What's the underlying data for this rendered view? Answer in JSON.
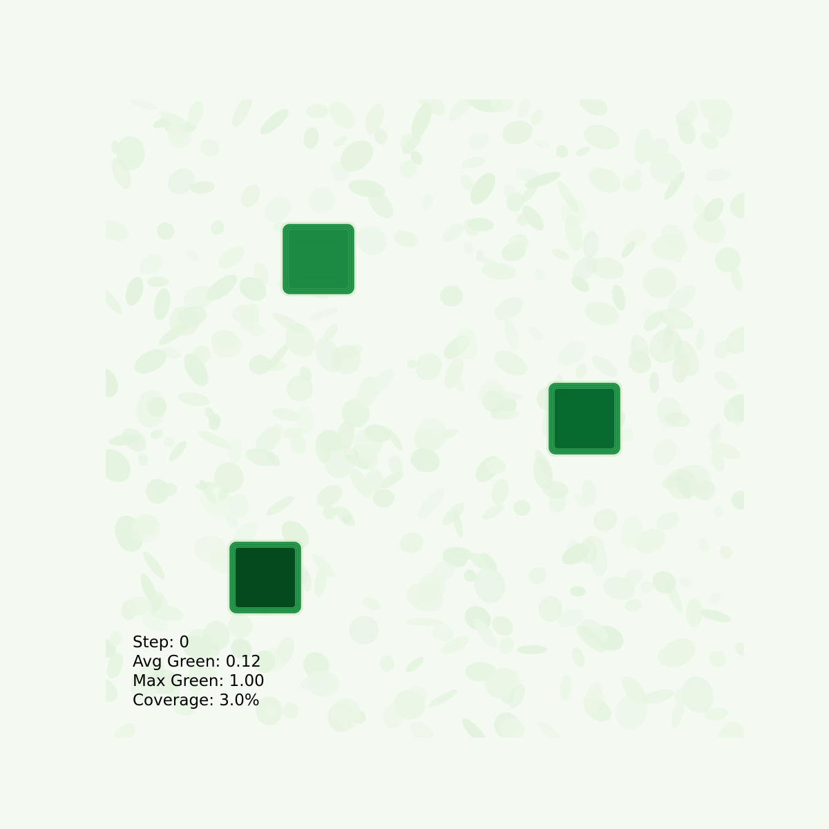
{
  "simulation": {
    "stats": {
      "step_label": "Step: 0",
      "avg_green_label": "Avg Green: 0.12",
      "max_green_label": "Max Green: 1.00",
      "coverage_label": "Coverage: 3.0%"
    },
    "values": {
      "step": 0,
      "avg_green": 0.12,
      "max_green": 1.0,
      "coverage_percent": 3.0
    },
    "colormap": "Greens",
    "colors": {
      "background": "#f4f9f2",
      "noise_light": "#e3f3de",
      "noise_lighter": "#eaf6e6",
      "patch_outline": "#1a8a3f",
      "patch_fill_light": "#1b8a42",
      "patch_fill_medium": "#07692e",
      "patch_fill_dark": "#044a1f"
    },
    "patches": [
      {
        "name": "patch-top",
        "intensity": 0.8
      },
      {
        "name": "patch-right",
        "intensity": 0.92
      },
      {
        "name": "patch-bottom-left",
        "intensity": 1.0
      }
    ]
  }
}
